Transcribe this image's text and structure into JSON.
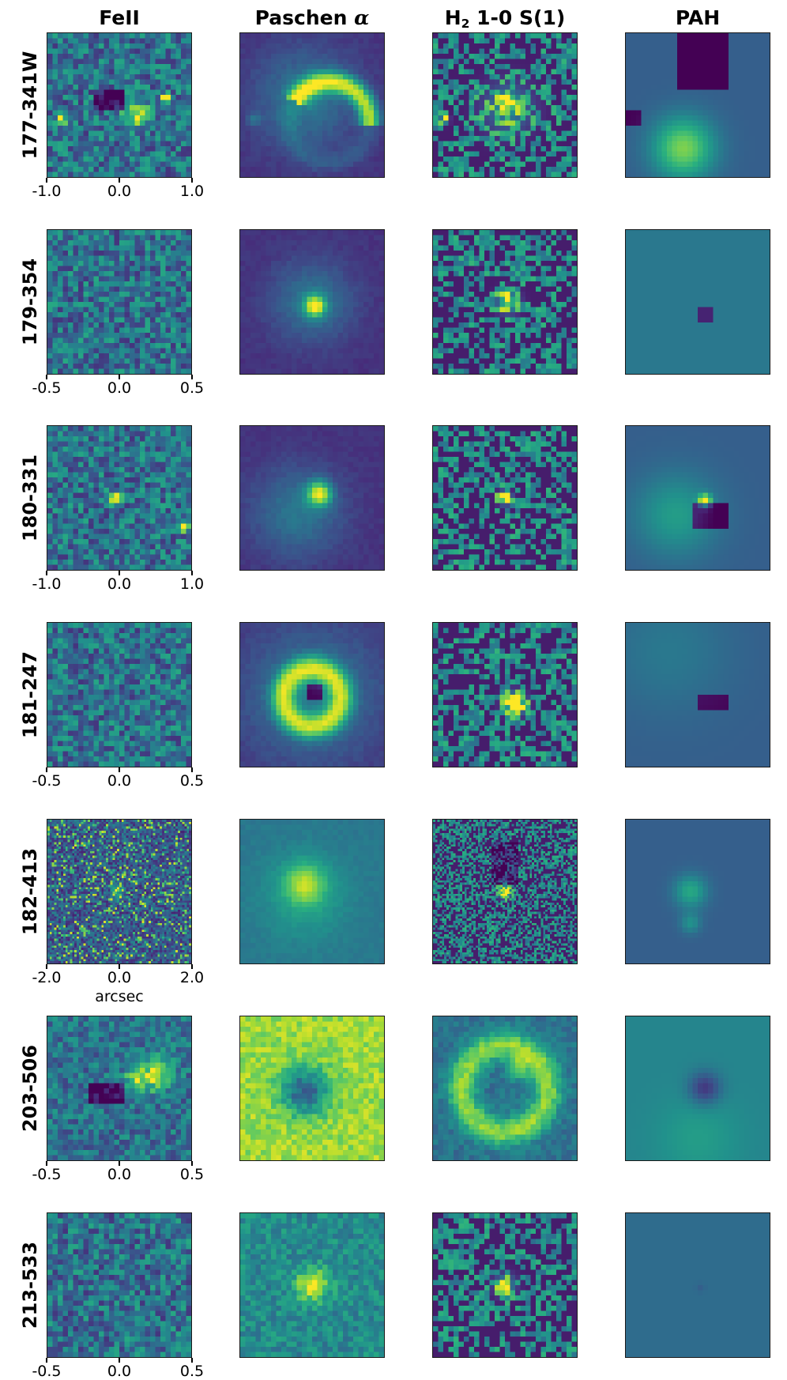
{
  "columns": [
    {
      "key": "feii",
      "pre": "FeII",
      "sub": "",
      "post": ""
    },
    {
      "key": "pa",
      "pre": "Paschen ",
      "sub": "",
      "post": "",
      "greek": "α"
    },
    {
      "key": "h2",
      "pre": "H",
      "sub": "2",
      "post": " 1-0 S(1)"
    },
    {
      "key": "pah",
      "pre": "PAH",
      "sub": "",
      "post": ""
    }
  ],
  "rows": [
    {
      "label": "177-341W",
      "ticks": [
        "-1.0",
        "0.0",
        "1.0"
      ],
      "xlabel": ""
    },
    {
      "label": "179-354",
      "ticks": [
        "-0.5",
        "0.0",
        "0.5"
      ],
      "xlabel": ""
    },
    {
      "label": "180-331",
      "ticks": [
        "-1.0",
        "0.0",
        "1.0"
      ],
      "xlabel": ""
    },
    {
      "label": "181-247",
      "ticks": [
        "-0.5",
        "0.0",
        "0.5"
      ],
      "xlabel": ""
    },
    {
      "label": "182-413",
      "ticks": [
        "-2.0",
        "0.0",
        "2.0"
      ],
      "xlabel": "arcsec"
    },
    {
      "label": "203-506",
      "ticks": [
        "-0.5",
        "0.0",
        "0.5"
      ],
      "xlabel": ""
    },
    {
      "label": "213-533",
      "ticks": [
        "-0.5",
        "0.0",
        "0.5"
      ],
      "xlabel": ""
    }
  ],
  "colormap": "viridis",
  "colormap_stops": [
    "#440154",
    "#472c7a",
    "#3b528b",
    "#2c728e",
    "#21918c",
    "#28ae80",
    "#5ec962",
    "#addc30",
    "#fde725"
  ],
  "frame_color": "#1a1a1a"
}
